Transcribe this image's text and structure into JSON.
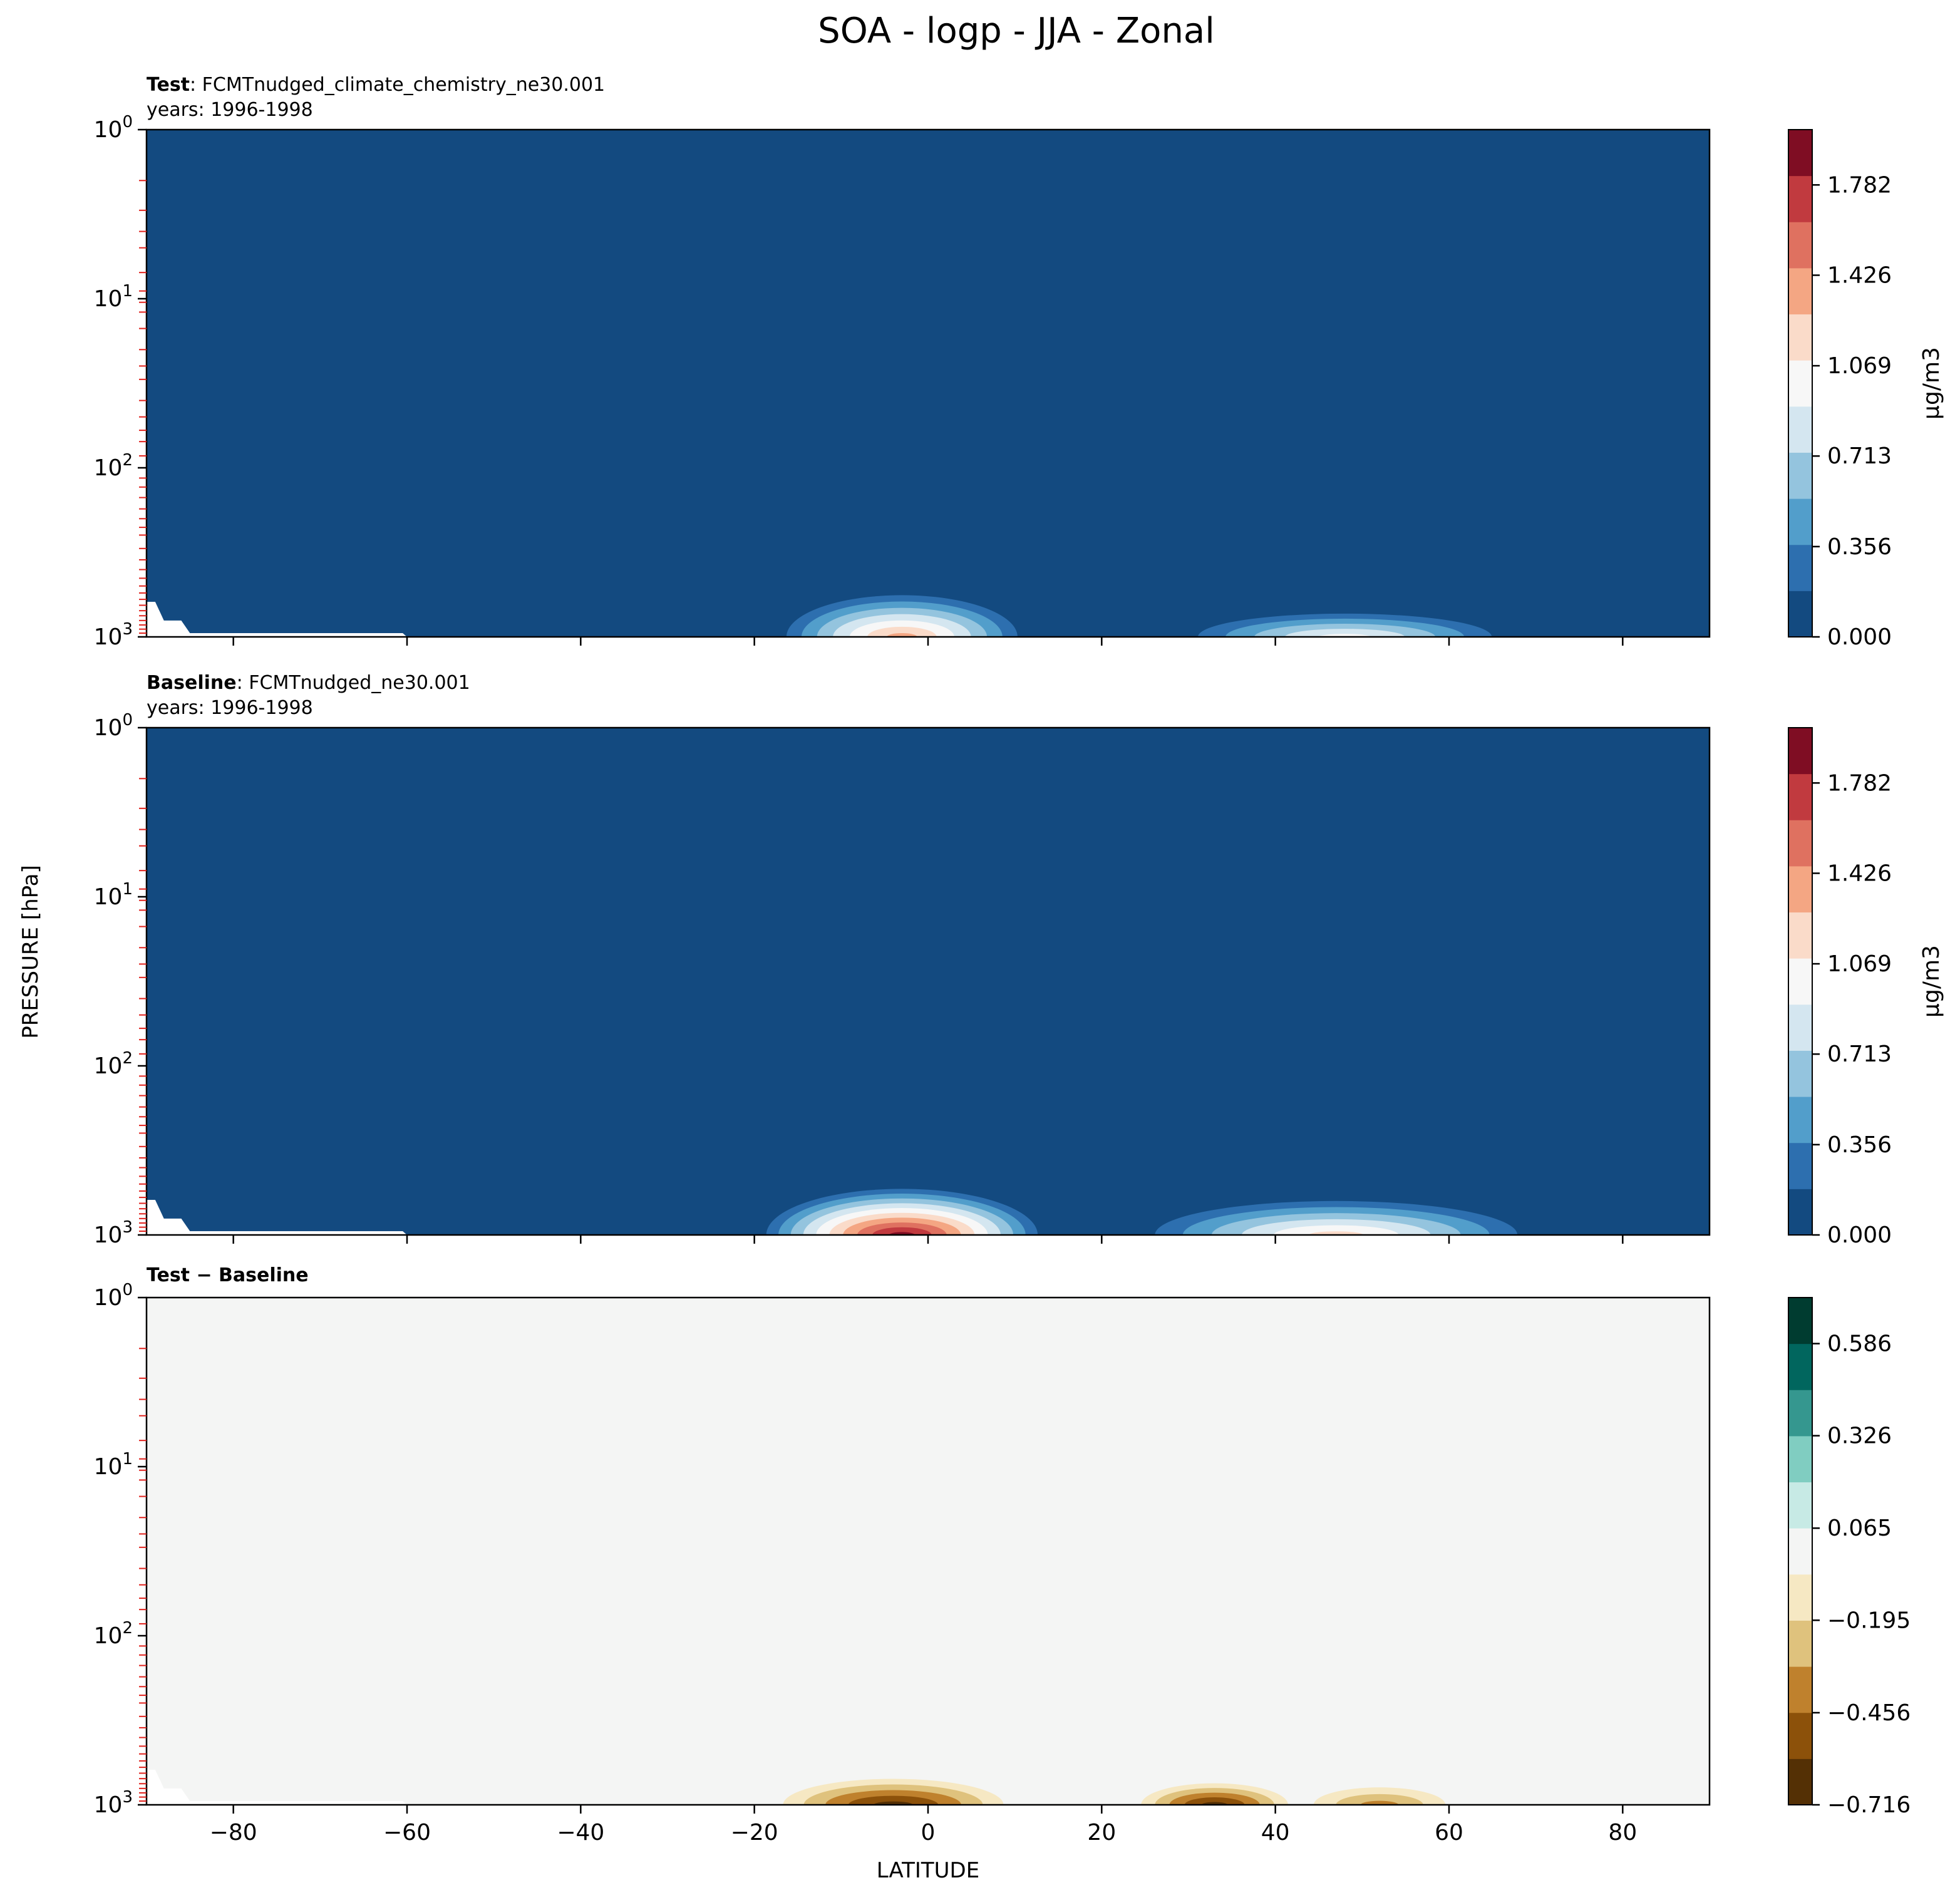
{
  "figure": {
    "title": "SOA - logp - JJA - Zonal",
    "shared_ylabel": "PRESSURE [hPa]",
    "shared_xlabel": "LATITUDE"
  },
  "chart_data": [
    {
      "type": "heatmap",
      "panel": "test",
      "title_bold": "Test",
      "title_rest": ": FCMTnudged_climate_chemistry_ne30.001",
      "subtitle": "years: 1996-1998",
      "xlim": [
        -90,
        90
      ],
      "ylim": [
        1000,
        1
      ],
      "y_scale": "log",
      "y_ticks": [
        {
          "value": 1,
          "base": "10",
          "exp": "0"
        },
        {
          "value": 10,
          "base": "10",
          "exp": "1"
        },
        {
          "value": 100,
          "base": "10",
          "exp": "2"
        },
        {
          "value": 1000,
          "base": "10",
          "exp": "3"
        }
      ],
      "x_ticks": [
        "−80",
        "−60",
        "−40",
        "−20",
        "0",
        "20",
        "40",
        "60",
        "80"
      ],
      "x_tick_values": [
        -80,
        -60,
        -40,
        -20,
        0,
        20,
        40,
        60,
        80
      ],
      "show_x_tick_labels": false,
      "colorbar": {
        "label": "μg/m3",
        "range": [
          0,
          2.0
        ],
        "ticks": [
          "0.000",
          "0.356",
          "0.713",
          "1.069",
          "1.426",
          "1.782"
        ],
        "tick_values": [
          0,
          0.356,
          0.713,
          1.069,
          1.426,
          1.782
        ],
        "colors": [
          "#134a80",
          "#2d6faf",
          "#529ecb",
          "#94c4de",
          "#d4e6f0",
          "#f7f7f7",
          "#fadbc9",
          "#f4a683",
          "#df7160",
          "#c13a3f",
          "#7f0d23"
        ]
      },
      "background_color": "#134a80",
      "features": [
        {
          "lat_center": -3,
          "max_value": 1.45,
          "top_pressure_hpa": 520,
          "width_deg": 30
        },
        {
          "lat_center": 48,
          "max_value": 0.95,
          "top_pressure_hpa": 680,
          "width_deg": 40
        }
      ]
    },
    {
      "type": "heatmap",
      "panel": "baseline",
      "title_bold": "Baseline",
      "title_rest": ": FCMTnudged_ne30.001",
      "subtitle": "years: 1996-1998",
      "xlim": [
        -90,
        90
      ],
      "ylim": [
        1000,
        1
      ],
      "y_scale": "log",
      "y_ticks": [
        {
          "value": 1,
          "base": "10",
          "exp": "0"
        },
        {
          "value": 10,
          "base": "10",
          "exp": "1"
        },
        {
          "value": 100,
          "base": "10",
          "exp": "2"
        },
        {
          "value": 1000,
          "base": "10",
          "exp": "3"
        }
      ],
      "x_ticks": [
        "−80",
        "−60",
        "−40",
        "−20",
        "0",
        "20",
        "40",
        "60",
        "80"
      ],
      "x_tick_values": [
        -80,
        -60,
        -40,
        -20,
        0,
        20,
        40,
        60,
        80
      ],
      "show_x_tick_labels": false,
      "colorbar": {
        "label": "μg/m3",
        "range": [
          0,
          2.0
        ],
        "ticks": [
          "0.000",
          "0.356",
          "0.713",
          "1.069",
          "1.426",
          "1.782"
        ],
        "tick_values": [
          0,
          0.356,
          0.713,
          1.069,
          1.426,
          1.782
        ],
        "colors": [
          "#134a80",
          "#2d6faf",
          "#529ecb",
          "#94c4de",
          "#d4e6f0",
          "#f7f7f7",
          "#fadbc9",
          "#f4a683",
          "#df7160",
          "#c13a3f",
          "#7f0d23"
        ]
      },
      "background_color": "#134a80",
      "features": [
        {
          "lat_center": -3,
          "max_value": 1.95,
          "top_pressure_hpa": 500,
          "width_deg": 34
        },
        {
          "lat_center": 47,
          "max_value": 1.1,
          "top_pressure_hpa": 580,
          "width_deg": 48
        }
      ]
    },
    {
      "type": "heatmap",
      "panel": "difference",
      "title_bold": "Test − Baseline",
      "title_rest": "",
      "subtitle": "",
      "xlim": [
        -90,
        90
      ],
      "ylim": [
        1000,
        1
      ],
      "y_scale": "log",
      "y_ticks": [
        {
          "value": 1,
          "base": "10",
          "exp": "0"
        },
        {
          "value": 10,
          "base": "10",
          "exp": "1"
        },
        {
          "value": 100,
          "base": "10",
          "exp": "2"
        },
        {
          "value": 1000,
          "base": "10",
          "exp": "3"
        }
      ],
      "x_ticks": [
        "−80",
        "−60",
        "−40",
        "−20",
        "0",
        "20",
        "40",
        "60",
        "80"
      ],
      "x_tick_values": [
        -80,
        -60,
        -40,
        -20,
        0,
        20,
        40,
        60,
        80
      ],
      "show_x_tick_labels": true,
      "colorbar": {
        "label": "",
        "range": [
          -0.716,
          0.716
        ],
        "ticks": [
          "−0.716",
          "−0.456",
          "−0.195",
          "0.065",
          "0.326",
          "0.586"
        ],
        "tick_values": [
          -0.716,
          -0.456,
          -0.195,
          0.065,
          0.326,
          0.586
        ],
        "colors": [
          "#543005",
          "#8c510a",
          "#bf812d",
          "#dfc27d",
          "#f6e8c3",
          "#f4f5f4",
          "#c7eae5",
          "#80cdc1",
          "#35978f",
          "#01665e",
          "#003c30"
        ]
      },
      "background_color": "#f4f5f4",
      "features": [
        {
          "lat_center": -4,
          "min_value": -0.7,
          "top_pressure_hpa": 650,
          "width_deg": 30
        },
        {
          "lat_center": 33,
          "min_value": -0.6,
          "top_pressure_hpa": 700,
          "width_deg": 20
        },
        {
          "lat_center": 52,
          "min_value": -0.35,
          "top_pressure_hpa": 720,
          "width_deg": 20
        }
      ]
    }
  ]
}
